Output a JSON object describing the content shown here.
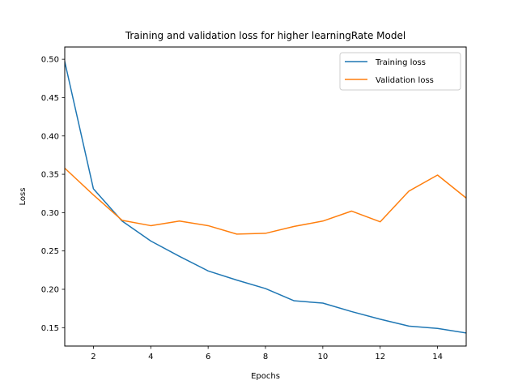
{
  "chart_data": {
    "type": "line",
    "title": "Training and validation loss for higher learningRate Model",
    "xlabel": "Epochs",
    "ylabel": "Loss",
    "xlim": [
      1,
      15
    ],
    "ylim": [
      0.126,
      0.516
    ],
    "xticks": [
      2,
      4,
      6,
      8,
      10,
      12,
      14
    ],
    "yticks": [
      0.15,
      0.2,
      0.25,
      0.3,
      0.35,
      0.4,
      0.45,
      0.5
    ],
    "grid": false,
    "legend_position": "top-right",
    "x": [
      1,
      2,
      3,
      4,
      5,
      6,
      7,
      8,
      9,
      10,
      11,
      12,
      13,
      14,
      15
    ],
    "series": [
      {
        "name": "Training loss",
        "color": "#1f77b4",
        "values": [
          0.497,
          0.331,
          0.289,
          0.263,
          0.243,
          0.224,
          0.212,
          0.201,
          0.185,
          0.182,
          0.171,
          0.161,
          0.152,
          0.149,
          0.143
        ]
      },
      {
        "name": "Validation loss",
        "color": "#ff7f0e",
        "values": [
          0.358,
          0.323,
          0.29,
          0.283,
          0.289,
          0.283,
          0.272,
          0.273,
          0.282,
          0.289,
          0.302,
          0.288,
          0.328,
          0.349,
          0.319
        ]
      }
    ]
  }
}
